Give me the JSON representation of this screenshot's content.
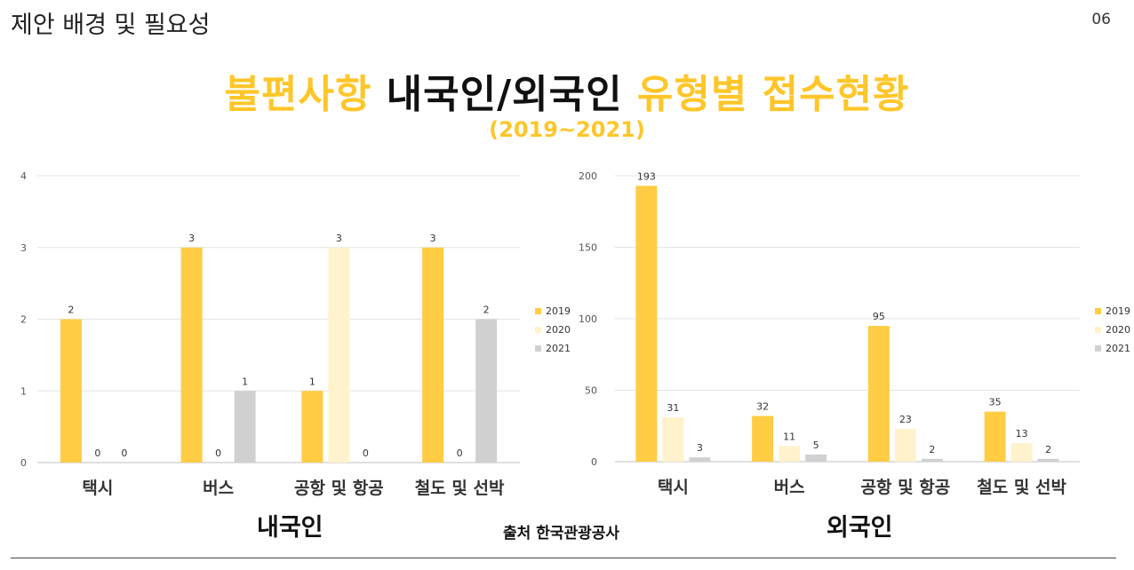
{
  "header": {
    "section_title": "제안 배경 및 필요성",
    "page_number": "06"
  },
  "title": {
    "part1": "불편사항 ",
    "part2": "내국인/외국인",
    "part3": " 유형별 접수현황",
    "subtitle": "(2019~2021)"
  },
  "source": "출처 한국관광공사",
  "colors": {
    "accent": "#ffc629",
    "series": [
      "#ffcc44",
      "#fff2cc",
      "#d0d0d0"
    ]
  },
  "chart_data": [
    {
      "type": "bar",
      "caption": "내국인",
      "categories": [
        "택시",
        "버스",
        "공항 및 항공",
        "철도 및 선박"
      ],
      "ylim": [
        0,
        4
      ],
      "y_ticks": [
        "0",
        "1",
        "2",
        "3",
        "4"
      ],
      "series": [
        {
          "name": "2019",
          "values": [
            2,
            3,
            1,
            3
          ],
          "labels": [
            "2",
            "3",
            "1",
            "3"
          ]
        },
        {
          "name": "2020",
          "values": [
            0,
            0,
            3,
            0
          ],
          "labels": [
            "0",
            "0",
            "3",
            "0"
          ]
        },
        {
          "name": "2021",
          "values": [
            0,
            1,
            0,
            2
          ],
          "labels": [
            "0",
            "1",
            "0",
            "2"
          ]
        }
      ],
      "legend": "right",
      "grid": true
    },
    {
      "type": "bar",
      "caption": "외국인",
      "categories": [
        "택시",
        "버스",
        "공항 및 항공",
        "철도 및 선박"
      ],
      "ylim": [
        0,
        200
      ],
      "y_ticks": [
        "0",
        "50",
        "100",
        "150",
        "200"
      ],
      "series": [
        {
          "name": "2019",
          "values": [
            193,
            32,
            95,
            35
          ],
          "labels": [
            "193",
            "32",
            "95",
            "35"
          ]
        },
        {
          "name": "2020",
          "values": [
            31,
            11,
            23,
            13
          ],
          "labels": [
            "31",
            "11",
            "23",
            "13"
          ]
        },
        {
          "name": "2021",
          "values": [
            3,
            5,
            2,
            2
          ],
          "labels": [
            "3",
            "5",
            "2",
            "2"
          ]
        }
      ],
      "legend": "right",
      "grid": true
    }
  ]
}
